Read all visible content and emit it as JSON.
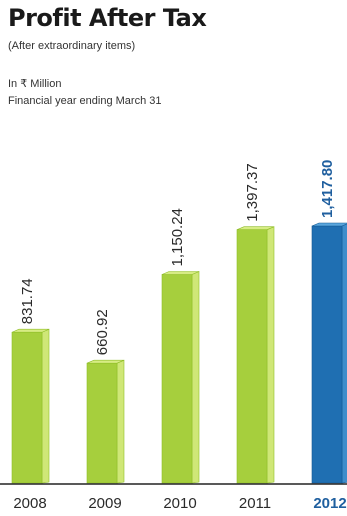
{
  "chart_data": {
    "type": "bar",
    "title": "Profit After Tax",
    "subtitle": "(After extraordinary items)",
    "unit_label": "In ₹ Million",
    "period_label": "Financial year ending March 31",
    "categories": [
      "2008",
      "2009",
      "2010",
      "2011",
      "2012"
    ],
    "values": [
      831.74,
      660.92,
      1150.24,
      1397.37,
      1417.8
    ],
    "value_labels": [
      "831.74",
      "660.92",
      "1,150.24",
      "1,397.37",
      "1,417.80"
    ],
    "highlight_index": 4,
    "grid": false,
    "legend": "none",
    "ylim": [
      0,
      1417.8
    ]
  },
  "colors": {
    "bar_face": "#a6cf3d",
    "bar_top": "#d7ec84",
    "bar_side": "#cfe777",
    "bar_outline": "#8fbe28",
    "highlight_face": "#1f6fb2",
    "highlight_top": "#5aa6dd",
    "highlight_side": "#3f8dcb",
    "highlight_outline": "#155a94",
    "label_normal": "#2a2a2a",
    "label_highlight": "#1f5f9f",
    "axis": "#222222"
  }
}
